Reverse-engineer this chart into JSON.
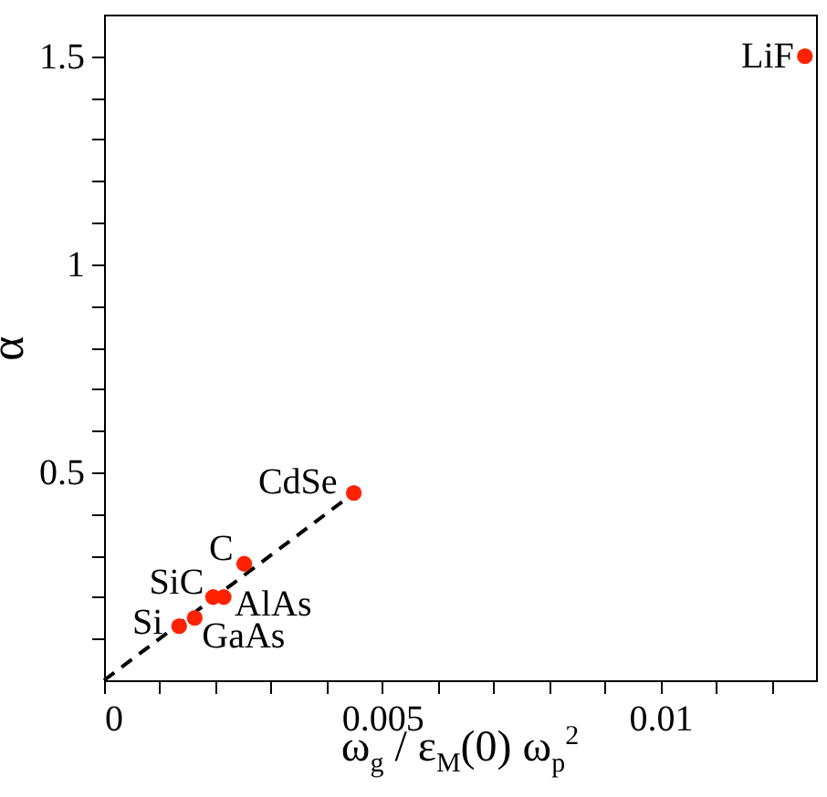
{
  "chart_data": {
    "type": "scatter",
    "xlabel": "ω$_{g}$ / ε$_{M}$(0) ω$_{p}$$^{2}$",
    "ylabel": "α",
    "xlim": [
      0,
      0.0128
    ],
    "ylim": [
      0,
      1.6
    ],
    "xticks": [
      0,
      {
        "value": 0.001,
        "label": null
      },
      {
        "value": 0.002,
        "label": null
      },
      {
        "value": 0.003,
        "label": null
      },
      {
        "value": 0.004,
        "label": null
      },
      0.005,
      {
        "value": 0.006,
        "label": null
      },
      {
        "value": 0.007,
        "label": null
      },
      {
        "value": 0.008,
        "label": null
      },
      {
        "value": 0.009,
        "label": null
      },
      0.01,
      {
        "value": 0.011,
        "label": null
      },
      {
        "value": 0.012,
        "label": null
      }
    ],
    "yticks": [
      {
        "value": 0.1,
        "label": null
      },
      {
        "value": 0.2,
        "label": null
      },
      {
        "value": 0.3,
        "label": null
      },
      {
        "value": 0.4,
        "label": null
      },
      0.5,
      {
        "value": 0.6,
        "label": null
      },
      {
        "value": 0.7,
        "label": null
      },
      {
        "value": 0.8,
        "label": null
      },
      {
        "value": 0.9,
        "label": null
      },
      1,
      {
        "value": 1.1,
        "label": null
      },
      {
        "value": 1.2,
        "label": null
      },
      {
        "value": 1.3,
        "label": null
      },
      {
        "value": 1.4,
        "label": null
      },
      1.5
    ],
    "grid": false,
    "series": [
      {
        "type": "line",
        "color": "#000000",
        "line_style": "dashed",
        "marker": "none",
        "x": [
          0,
          0.00449
        ],
        "values": [
          0,
          0.45
        ]
      },
      {
        "color": "#ff2200",
        "marker": "circle",
        "x": [
          0.0126,
          0.00449,
          0.00252,
          0.00196,
          0.00215,
          0.00163,
          0.00135
        ],
        "values": [
          1.5,
          0.45,
          0.28,
          0.2,
          0.2,
          0.15,
          0.13
        ]
      }
    ],
    "annotations": [
      {
        "text": "LiF",
        "x": 0.0126,
        "y": 1.5
      },
      {
        "text": "CdSe",
        "x": 0.00449,
        "y": 0.45
      },
      {
        "text": "C",
        "x": 0.00252,
        "y": 0.28
      },
      {
        "text": "SiC",
        "x": 0.00196,
        "y": 0.2
      },
      {
        "text": "AlAs",
        "x": 0.00215,
        "y": 0.2
      },
      {
        "text": "GaAs",
        "x": 0.00163,
        "y": 0.15
      },
      {
        "text": "Si",
        "x": 0.00135,
        "y": 0.13
      }
    ]
  }
}
